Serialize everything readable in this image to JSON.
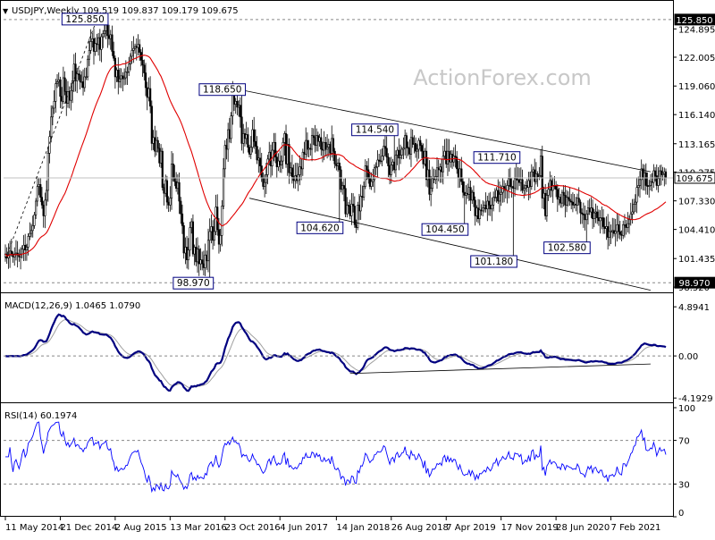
{
  "header": {
    "symbol": "USDJPY,Weekly",
    "ohlc": "109.519 109.837 109.179 109.675"
  },
  "watermark": "ActionForex.com",
  "colors": {
    "price": "#000000",
    "ma": "#e00000",
    "macd": "#000080",
    "signal": "#a0a0a0",
    "rsi": "#0000ff",
    "grid": "#888888",
    "watermark": "#c8c8c8"
  },
  "chart_data": [
    {
      "type": "candlestick",
      "title": "USDJPY,Weekly",
      "x_labels": [
        "11 May 2014",
        "21 Dec 2014",
        "2 Aug 2015",
        "13 Mar 2016",
        "23 Oct 2016",
        "4 Jun 2017",
        "14 Jan 2018",
        "26 Aug 2018",
        "7 Apr 2019",
        "17 Nov 2019",
        "28 Jun 2020",
        "7 Feb 2021"
      ],
      "y_ticks": [
        "124.895",
        "122.005",
        "119.060",
        "116.140",
        "113.165",
        "110.275",
        "107.330",
        "104.410",
        "101.435",
        "98.520"
      ],
      "ylim": [
        97.8,
        127.3
      ],
      "current_price": "109.675",
      "hlines": [
        "125.850",
        "98.970"
      ],
      "close_series": [
        101.9,
        101.5,
        101.8,
        102.2,
        101.9,
        101.6,
        101.9,
        102.0,
        101.8,
        101.6,
        101.9,
        102.4,
        102.8,
        102.3,
        102.6,
        103.7,
        104.0,
        104.3,
        104.8,
        105.9,
        107.3,
        108.8,
        109.0,
        107.7,
        106.9,
        105.8,
        107.4,
        108.4,
        112.2,
        113.9,
        115.9,
        116.8,
        117.5,
        119.3,
        119.5,
        119.7,
        118.0,
        117.5,
        119.9,
        118.5,
        117.3,
        118.5,
        117.6,
        118.6,
        119.6,
        121.3,
        119.6,
        120.3,
        120.2,
        119.5,
        119.5,
        118.9,
        120.0,
        120.0,
        121.8,
        122.7,
        123.6,
        123.9,
        122.6,
        123.4,
        123.3,
        124.0,
        122.8,
        124.1,
        124.4,
        124.7,
        125.4,
        124.2,
        123.9,
        124.3,
        122.6,
        121.9,
        120.0,
        120.7,
        119.5,
        119.8,
        120.1,
        119.8,
        119.9,
        120.5,
        120.5,
        121.3,
        122.1,
        122.7,
        122.9,
        123.1,
        123.0,
        123.3,
        122.5,
        121.7,
        121.2,
        120.4,
        118.9,
        117.9,
        118.8,
        117.0,
        113.2,
        113.8,
        112.4,
        113.5,
        112.7,
        111.2,
        112.4,
        108.7,
        108.1,
        109.4,
        107.2,
        106.9,
        107.6,
        111.1,
        109.7,
        109.3,
        108.6,
        109.2,
        107.3,
        106.0,
        104.8,
        102.0,
        102.6,
        101.3,
        102.3,
        104.6,
        105.2,
        101.9,
        102.6,
        101.1,
        102.4,
        100.9,
        101.3,
        100.9,
        100.5,
        101.8,
        101.2,
        103.3,
        104.2,
        104.7,
        103.3,
        104.2,
        106.7,
        104.4,
        102.9,
        103.8,
        106.8,
        110.6,
        113.0,
        112.6,
        114.6,
        113.7,
        116.0,
        118.6,
        117.2,
        117.5,
        116.9,
        117.1,
        115.9,
        113.2,
        114.2,
        113.7,
        114.1,
        112.8,
        112.1,
        112.8,
        114.6,
        113.4,
        112.9,
        111.5,
        111.7,
        110.9,
        109.7,
        108.8,
        109.2,
        110.0,
        111.6,
        112.3,
        110.9,
        112.5,
        113.3,
        111.8,
        110.8,
        111.4,
        111.0,
        111.4,
        113.3,
        114.2,
        111.1,
        113.1,
        110.2,
        110.7,
        109.8,
        109.4,
        109.9,
        109.4,
        110.0,
        110.8,
        110.6,
        112.3,
        112.1,
        113.5,
        112.6,
        112.7,
        112.6,
        114.0,
        113.8,
        113.0,
        114.0,
        113.4,
        113.8,
        112.6,
        112.5,
        113.3,
        112.6,
        112.8,
        113.1,
        112.2,
        113.7,
        112.4,
        111.1,
        110.9,
        111.2,
        110.5,
        108.5,
        108.9,
        108.6,
        106.0,
        106.9,
        106.8,
        105.8,
        107.0,
        106.8,
        104.9,
        104.6,
        106.9,
        106.3,
        107.8,
        107.7,
        108.8,
        110.9,
        110.5,
        109.6,
        108.8,
        109.3,
        109.5,
        110.7,
        110.8,
        111.5,
        111.4,
        111.4,
        111.9,
        112.9,
        112.7,
        111.8,
        110.9,
        110.0,
        111.0,
        111.3,
        110.5,
        112.0,
        112.5,
        111.7,
        112.0,
        112.6,
        112.7,
        114.0,
        112.8,
        112.7,
        112.1,
        113.8,
        113.1,
        113.2,
        112.4,
        112.6,
        113.5,
        113.0,
        112.4,
        111.1,
        112.4,
        109.5,
        110.5,
        108.0,
        108.6,
        109.6,
        109.5,
        109.8,
        110.7,
        110.5,
        110.8,
        110.3,
        111.9,
        112.4,
        111.1,
        112.4,
        111.3,
        112.1,
        111.3,
        111.9,
        111.8,
        110.6,
        109.7,
        110.6,
        109.3,
        108.2,
        107.9,
        108.1,
        108.0,
        108.7,
        107.4,
        108.2,
        107.4,
        105.8,
        106.6,
        105.5,
        106.4,
        106.3,
        106.6,
        106.9,
        106.5,
        107.3,
        106.9,
        106.5,
        106.9,
        107.7,
        107.7,
        108.4,
        107.3,
        108.0,
        108.2,
        108.8,
        108.5,
        108.4,
        108.9,
        109.6,
        108.8,
        108.8,
        108.6,
        109.6,
        109.5,
        109.5,
        109.2,
        109.5,
        108.4,
        108.6,
        108.9,
        108.7,
        109.4,
        108.8,
        110.3,
        110.5,
        109.3,
        110.1,
        109.8,
        109.9,
        111.9,
        107.6,
        108.1,
        105.8,
        107.9,
        108.5,
        109.4,
        108.4,
        108.9,
        108.9,
        108.5,
        107.5,
        107.7,
        107.1,
        108.2,
        107.9,
        106.9,
        107.7,
        107.5,
        107.3,
        107.2,
        106.9,
        107.0,
        106.9,
        107.6,
        107.2,
        106.1,
        106.0,
        105.9,
        105.4,
        106.0,
        106.6,
        106.2,
        106.6,
        105.5,
        106.1,
        106.2,
        105.6,
        105.3,
        105.6,
        105.6,
        104.7,
        104.5,
        104.7,
        103.6,
        104.2,
        104.2,
        104.3,
        104.0,
        104.2,
        104.9,
        104.2,
        103.9,
        103.8,
        104.9,
        104.9,
        104.6,
        105.0,
        105.4,
        106.0,
        106.2,
        107.0,
        107.2,
        108.7,
        108.9,
        109.5,
        110.6,
        109.7,
        110.2,
        108.9,
        108.8,
        108.9,
        109.3,
        109.2,
        110.4,
        109.9,
        108.9,
        109.6,
        110.4,
        110.0,
        110.1,
        110.3,
        109.7
      ]
    },
    {
      "type": "line",
      "title": "MACD(12,26,9) 1.0465 1.0790",
      "y_ticks": [
        "4.8941",
        "0.00",
        "-4.1929"
      ],
      "ylim": [
        -4.8,
        5.8
      ],
      "current": [
        "1.0465",
        "1.0790"
      ]
    },
    {
      "type": "line",
      "title": "RSI(14) 60.1974",
      "y_ticks": [
        "100",
        "70",
        "30",
        "0"
      ],
      "ylim": [
        0,
        100
      ],
      "current": "60.1974"
    }
  ],
  "annotations": [
    {
      "label": "125.850",
      "index": 65,
      "price": 125.85
    },
    {
      "label": "118.650",
      "index": 155,
      "price": 118.65
    },
    {
      "label": "98.970",
      "index": 134,
      "price": 98.97
    },
    {
      "label": "104.620",
      "index": 219,
      "price": 104.62
    },
    {
      "label": "114.540",
      "index": 255,
      "price": 114.54
    },
    {
      "label": "104.450",
      "index": 301,
      "price": 104.45
    },
    {
      "label": "111.710",
      "index": 335,
      "price": 111.71
    },
    {
      "label": "101.180",
      "index": 333,
      "price": 101.18
    },
    {
      "label": "102.580",
      "index": 381,
      "price": 102.58
    }
  ],
  "trendlines": [
    {
      "from": {
        "index": 155,
        "price": 118.65
      },
      "to": {
        "index": 423,
        "price": 110.3
      }
    },
    {
      "from": {
        "index": 160,
        "price": 107.6
      },
      "to": {
        "index": 423,
        "price": 98.2
      }
    },
    {
      "from": {
        "index": 0,
        "price": 101.4
      },
      "to": {
        "index": 60,
        "price": 125.85
      }
    }
  ],
  "macd_trendline": {
    "from": {
      "index": 226,
      "value": -1.75
    },
    "to": {
      "index": 423,
      "value": -0.8
    }
  }
}
